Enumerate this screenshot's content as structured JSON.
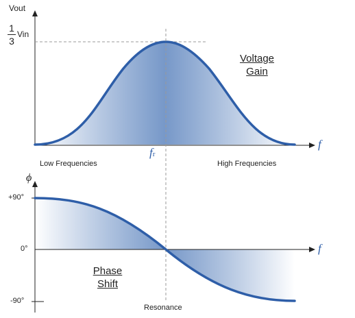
{
  "top": {
    "y_label": "Vout",
    "fraction_num": "1",
    "fraction_den": "3",
    "fraction_unit": "Vin",
    "x_symbol": "f",
    "fr_main": "f",
    "fr_sub": "r",
    "title_line1": "Voltage",
    "title_line2": "Gain",
    "low_label": "Low Frequencies",
    "high_label": "High Frequencies"
  },
  "bottom": {
    "y_symbol": "ϕ",
    "x_symbol": "f",
    "plus90": "+90°",
    "zero": "0°",
    "minus90": "-90°",
    "title_line1": "Phase",
    "title_line2": "Shift",
    "resonance": "Resonance"
  },
  "colors": {
    "curve": "#2e5ea8",
    "axis": "#222222",
    "guide": "#999999",
    "fill_dark": "#5f86bf",
    "fill_light": "#ffffff"
  }
}
